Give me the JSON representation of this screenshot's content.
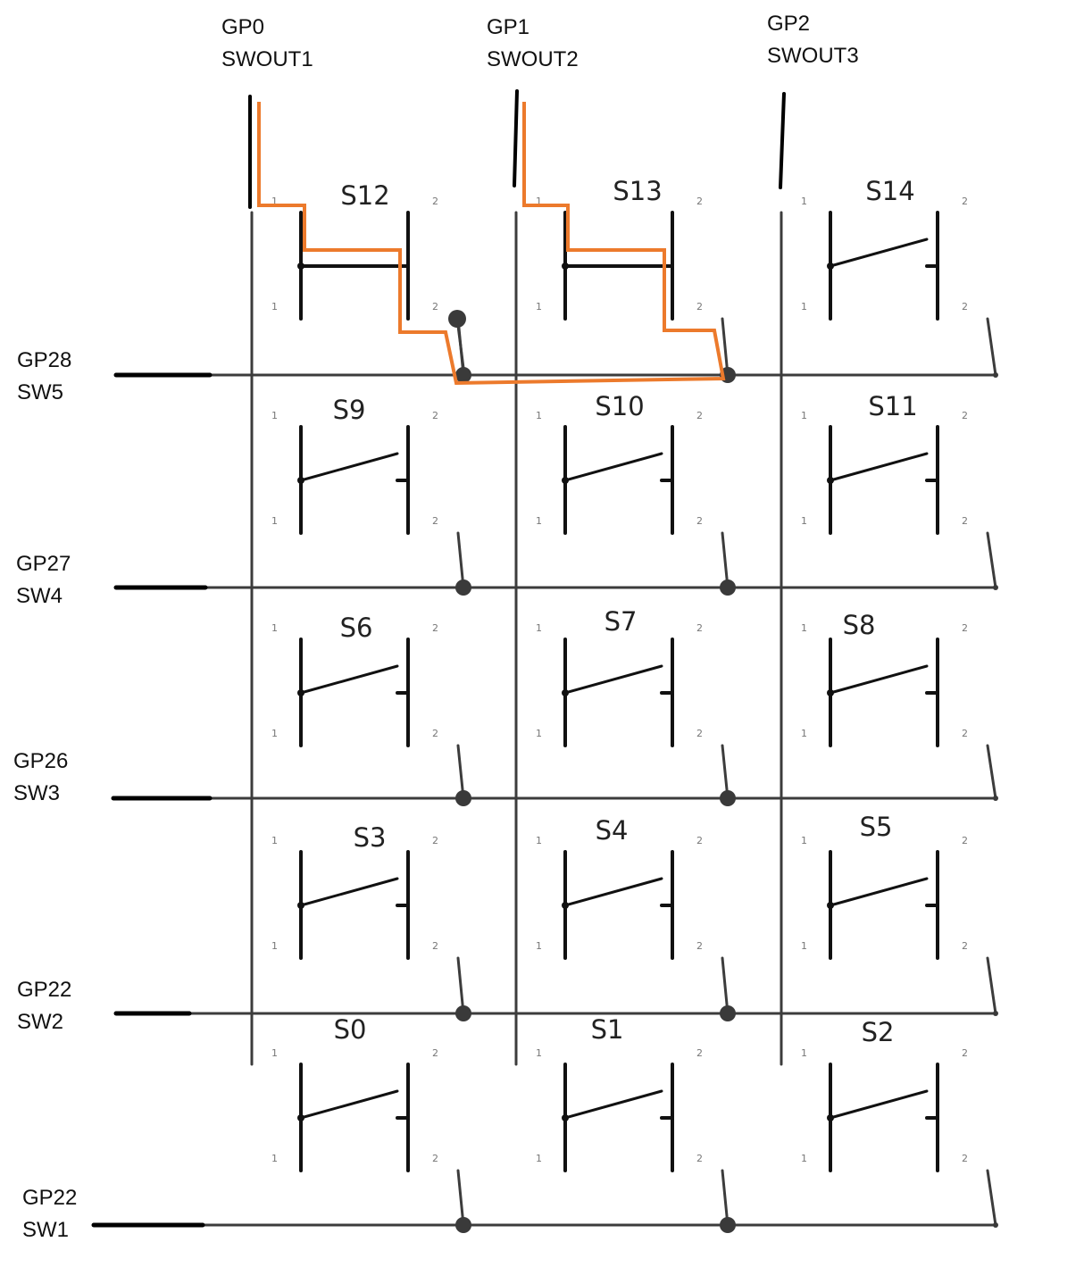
{
  "columns": [
    {
      "gp": "GP0",
      "sw": "SWOUT1"
    },
    {
      "gp": "GP1",
      "sw": "SWOUT2"
    },
    {
      "gp": "GP2",
      "sw": "SWOUT3"
    }
  ],
  "rows": [
    {
      "gp": "GP28",
      "sw": "SW5",
      "switches": [
        "S12",
        "S13",
        "S14"
      ]
    },
    {
      "gp": "GP27",
      "sw": "SW4",
      "switches": [
        "S9",
        "S10",
        "S11"
      ]
    },
    {
      "gp": "GP26",
      "sw": "SW3",
      "switches": [
        "S6",
        "S7",
        "S8"
      ]
    },
    {
      "gp": "GP22",
      "sw": "SW2",
      "switches": [
        "S3",
        "S4",
        "S5"
      ]
    },
    {
      "gp": "GP22",
      "sw": "SW1",
      "switches": [
        "S0",
        "S1",
        "S2"
      ]
    }
  ],
  "pin_labels": {
    "left": "1",
    "right": "2"
  },
  "colors": {
    "wire": "#3c3c3c",
    "terminal": "#2da82d",
    "highlight": "#ec7a2c"
  }
}
